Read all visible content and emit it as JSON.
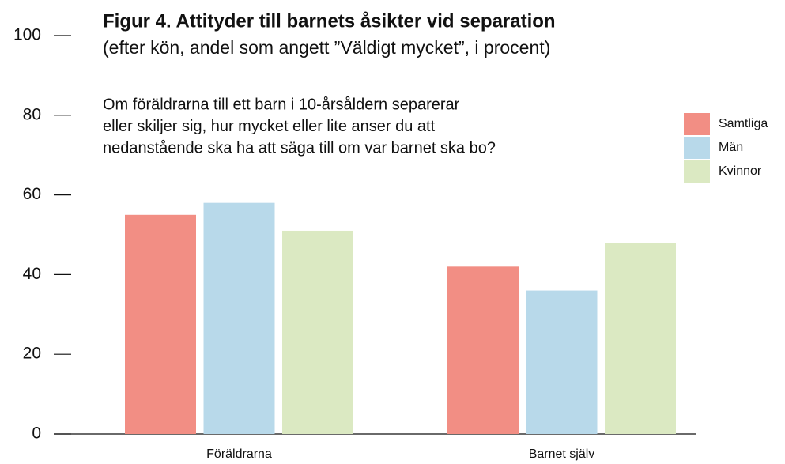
{
  "chart_data": {
    "type": "bar",
    "title": "Figur 4. Attityder till barnets åsikter vid separation",
    "subtitle": "(efter kön, andel som angett ”Väldigt mycket”, i procent)",
    "annotation": [
      "Om föräldrarna till ett barn i 10-årsåldern separerar",
      "eller skiljer sig, hur mycket eller lite anser du att",
      "nedanstående ska ha att säga till om var barnet ska bo?"
    ],
    "categories": [
      "Föräldrarna",
      "Barnet själv"
    ],
    "series": [
      {
        "name": "Samtliga",
        "color": "#f28e84",
        "values": [
          55,
          42
        ]
      },
      {
        "name": "Män",
        "color": "#b8d9ea",
        "values": [
          58,
          36
        ]
      },
      {
        "name": "Kvinnor",
        "color": "#dbe9c2",
        "values": [
          51,
          48
        ]
      }
    ],
    "ylim": [
      0,
      100
    ],
    "yticks": [
      0,
      20,
      40,
      60,
      80,
      100
    ],
    "legend": "upper right"
  }
}
